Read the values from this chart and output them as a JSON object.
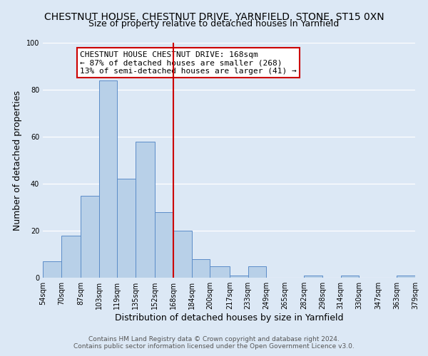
{
  "title": "CHESTNUT HOUSE, CHESTNUT DRIVE, YARNFIELD, STONE, ST15 0XN",
  "subtitle": "Size of property relative to detached houses in Yarnfield",
  "xlabel": "Distribution of detached houses by size in Yarnfield",
  "ylabel": "Number of detached properties",
  "bar_edges": [
    54,
    70,
    87,
    103,
    119,
    135,
    152,
    168,
    184,
    200,
    217,
    233,
    249,
    265,
    282,
    298,
    314,
    330,
    347,
    363,
    379
  ],
  "bar_heights": [
    7,
    18,
    35,
    84,
    42,
    58,
    28,
    20,
    8,
    5,
    1,
    5,
    0,
    0,
    1,
    0,
    1,
    0,
    0,
    1
  ],
  "tick_labels": [
    "54sqm",
    "70sqm",
    "87sqm",
    "103sqm",
    "119sqm",
    "135sqm",
    "152sqm",
    "168sqm",
    "184sqm",
    "200sqm",
    "217sqm",
    "233sqm",
    "249sqm",
    "265sqm",
    "282sqm",
    "298sqm",
    "314sqm",
    "330sqm",
    "347sqm",
    "363sqm",
    "379sqm"
  ],
  "bar_color": "#b8d0e8",
  "bar_edge_color": "#5b8cc8",
  "vline_x": 168,
  "vline_color": "#cc0000",
  "annotation_lines": [
    "CHESTNUT HOUSE CHESTNUT DRIVE: 168sqm",
    "← 87% of detached houses are smaller (268)",
    "13% of semi-detached houses are larger (41) →"
  ],
  "annotation_box_color": "#ffffff",
  "annotation_box_edge": "#cc0000",
  "ylim": [
    0,
    100
  ],
  "yticks": [
    0,
    20,
    40,
    60,
    80,
    100
  ],
  "footnote1": "Contains HM Land Registry data © Crown copyright and database right 2024.",
  "footnote2": "Contains public sector information licensed under the Open Government Licence v3.0.",
  "bg_color": "#dce8f5",
  "plot_bg_color": "#dce8f5",
  "title_fontsize": 10,
  "subtitle_fontsize": 9,
  "axis_label_fontsize": 9,
  "tick_fontsize": 7,
  "footnote_fontsize": 6.5,
  "annotation_fontsize": 8
}
